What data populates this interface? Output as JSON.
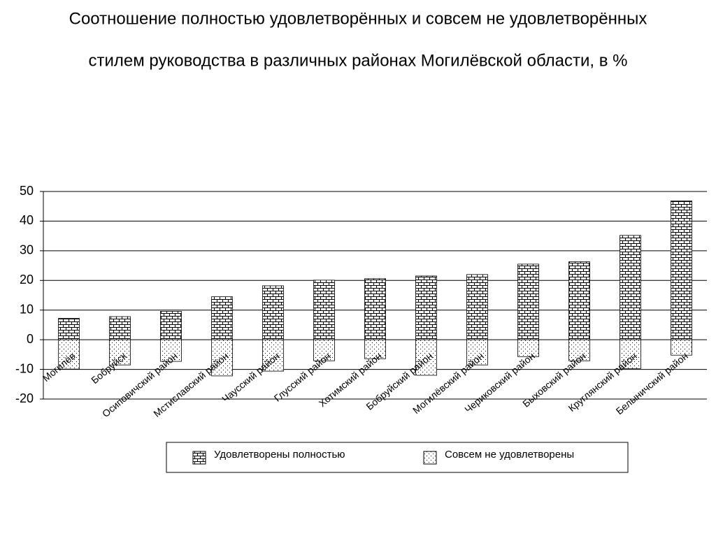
{
  "chart_data": {
    "type": "bar",
    "title": [
      "Соотношение полностью удовлетворённых и совсем не удовлетворённых",
      "стилем руководства в различных районах Могилёвской области, в %"
    ],
    "categories": [
      "Могилёв",
      "Бобруйск",
      "Осиповичский район",
      "Мстиславский район",
      "Чаусский район",
      "Глусский район",
      "Хотимский район",
      "Бобруйский район",
      "Могилёвский район",
      "Чериковский район",
      "Быховский район",
      "Круглянский район",
      "Белыничский район"
    ],
    "series": [
      {
        "name": "Удовлетворены полностью",
        "color": "#000000",
        "pattern": "brick",
        "values": [
          7.2,
          7.8,
          9.6,
          14.5,
          18.2,
          20.1,
          20.6,
          21.5,
          22,
          25.5,
          26.3,
          35.2,
          46.8
        ]
      },
      {
        "name": "Совсем не удовлетворены",
        "color": "#000000",
        "pattern": "dots",
        "values": [
          -9.9,
          -8.5,
          -7.3,
          -12.2,
          -10.6,
          -7.1,
          -6.4,
          -12,
          -8.5,
          -5.7,
          -7.1,
          -9.7,
          -5.2
        ]
      }
    ],
    "ylim": [
      -20,
      50
    ],
    "yticks": [
      -20,
      -10,
      0,
      10,
      20,
      30,
      40,
      50
    ],
    "grid": true
  }
}
